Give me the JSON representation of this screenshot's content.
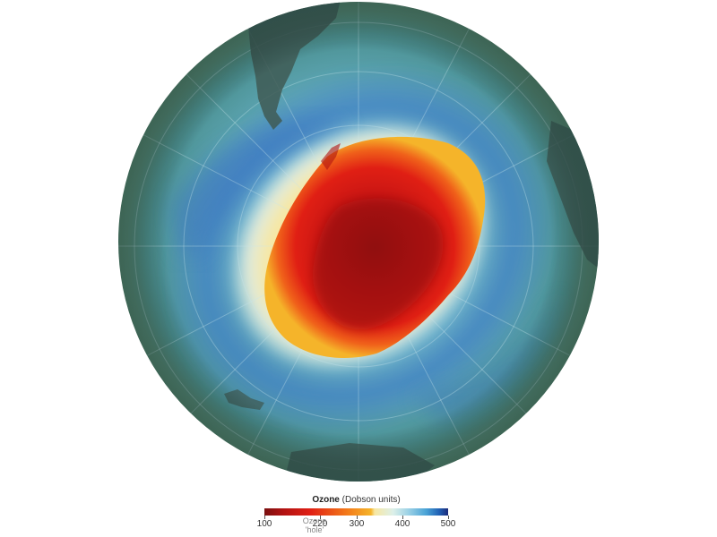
{
  "map": {
    "projection": "orthographic-south-polar",
    "colors": {
      "background": "#ffffff",
      "globe_base": "#4f9898",
      "land": "#3f5b55",
      "hole_core": "#9a1212",
      "hole_mid": "#e01f14",
      "hole_edge": "#f5b42a",
      "ring_light": "#f5f4dc",
      "band_blue": "#4a8fce"
    }
  },
  "legend": {
    "title": "Ozone",
    "units": "(Dobson units)",
    "hole_label_line1": "Ozone",
    "hole_label_line2": "'hole'",
    "scale_min": 100,
    "scale_max": 500,
    "hole_threshold": 220,
    "ticks": [
      "100",
      "220",
      "300",
      "400",
      "500"
    ]
  }
}
